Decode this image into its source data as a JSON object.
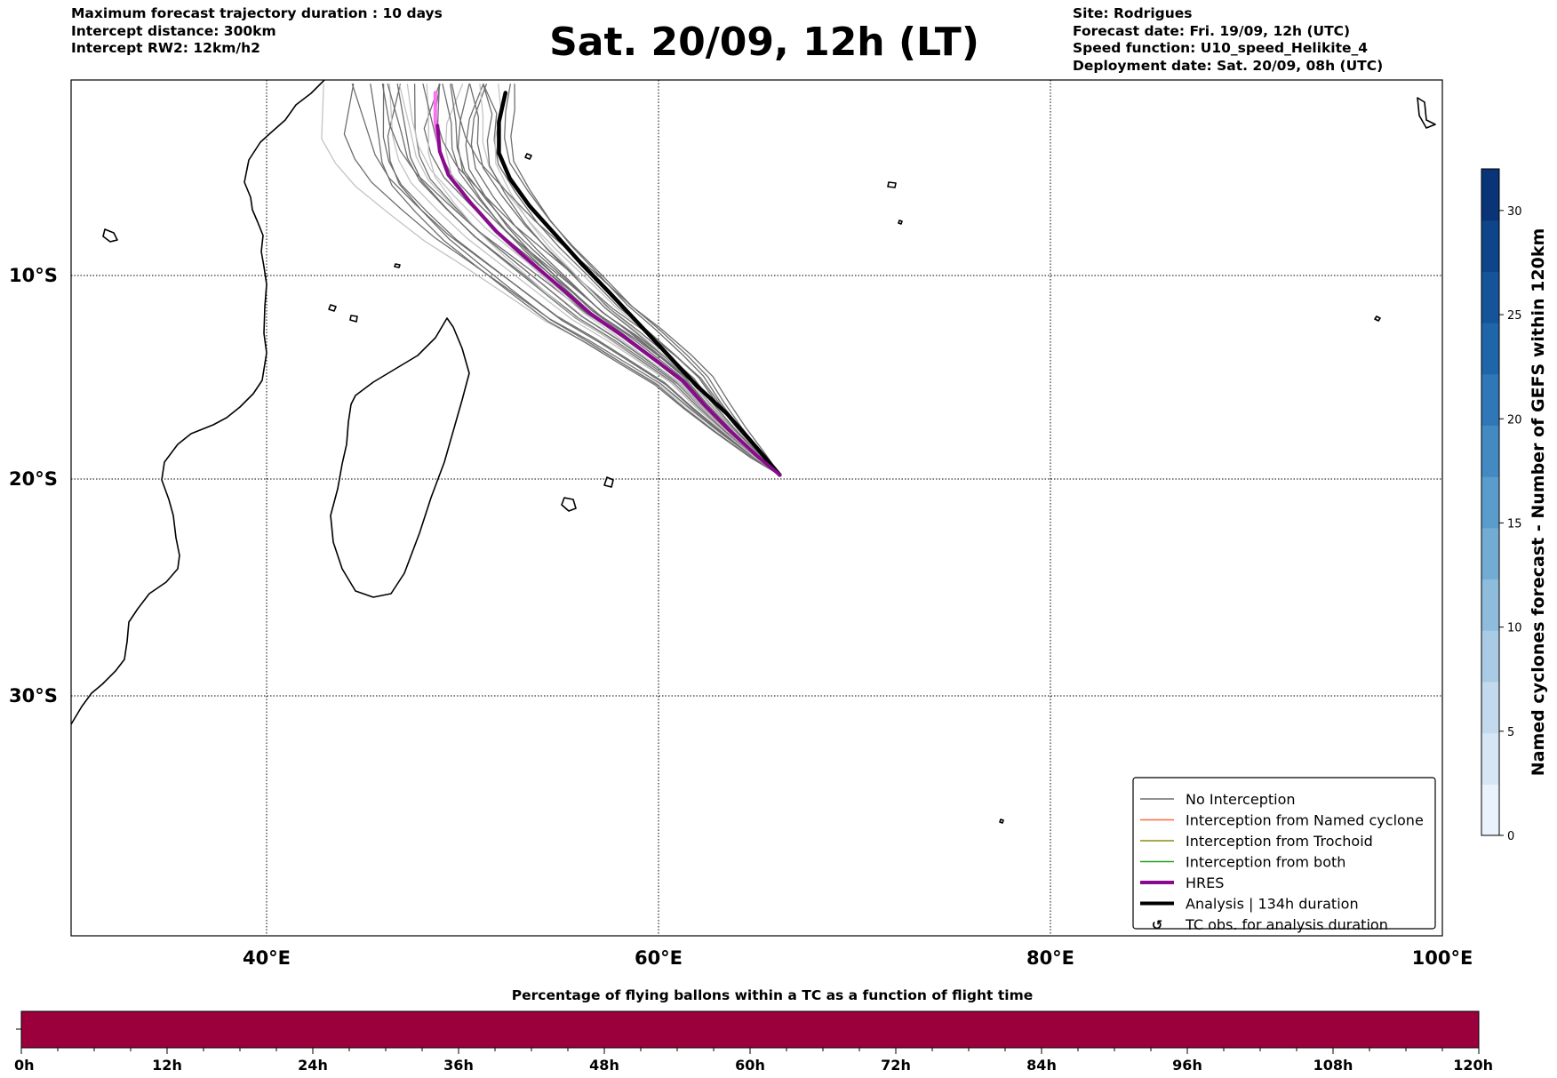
{
  "header": {
    "left_lines": [
      "Maximum forecast trajectory duration : 10 days",
      "Intercept distance: 300km",
      "Intercept RW2: 12km/h2"
    ],
    "title": "Sat. 20/09, 12h (LT)",
    "right_lines": [
      "Site: Rodrigues",
      "Forecast date: Fri. 19/09, 12h (UTC)",
      "Speed function: U10_speed_Helikite_4",
      "Deployment date: Sat. 20/09, 08h (UTC)"
    ]
  },
  "map": {
    "lat_labels": [
      "10°S",
      "20°S",
      "30°S"
    ],
    "lon_labels": [
      "40°E",
      "60°E",
      "80°E",
      "100°E"
    ],
    "deployment_site": "Rodrigues",
    "trajectories": {
      "hres": [
        [
          63.4,
          -19.8
        ],
        [
          62.4,
          -18.9
        ],
        [
          61.1,
          -17.6
        ],
        [
          60.0,
          -16.4
        ],
        [
          59.0,
          -15.2
        ],
        [
          57.8,
          -14.2
        ],
        [
          56.3,
          -13.0
        ],
        [
          54.8,
          -11.9
        ],
        [
          53.2,
          -10.4
        ],
        [
          51.7,
          -8.9
        ],
        [
          50.5,
          -7.6
        ],
        [
          49.3,
          -6.0
        ],
        [
          48.3,
          -4.5
        ],
        [
          47.9,
          -3.2
        ],
        [
          47.8,
          -1.8
        ]
      ],
      "analysis": [
        [
          63.4,
          -19.8
        ],
        [
          62.3,
          -18.4
        ],
        [
          61.0,
          -16.8
        ],
        [
          59.6,
          -15.4
        ],
        [
          58.3,
          -13.9
        ],
        [
          57.0,
          -12.4
        ],
        [
          55.6,
          -10.8
        ],
        [
          54.4,
          -9.4
        ],
        [
          53.2,
          -7.8
        ],
        [
          52.0,
          -6.2
        ],
        [
          51.1,
          -4.7
        ],
        [
          50.6,
          -3.3
        ],
        [
          50.6,
          -1.6
        ],
        [
          50.9,
          0.0
        ]
      ],
      "pink_segment": [
        [
          48.3,
          -4.5
        ],
        [
          47.9,
          -3.2
        ],
        [
          47.7,
          -1.6
        ],
        [
          47.7,
          0.0
        ]
      ]
    },
    "colors": {
      "ensemble": "#6f6f6f",
      "ensemble_light": "#c4c4c4",
      "hres": "#8a0a8e",
      "analysis": "#000000",
      "pink": "#ff6ef5"
    }
  },
  "legend": {
    "items": [
      {
        "label": "No Interception",
        "color": "#6f6f6f",
        "type": "line-thin"
      },
      {
        "label": "Interception from Named cyclone",
        "color": "#ff6a3d",
        "type": "line-thin"
      },
      {
        "label": "Interception from Trochoid",
        "color": "#8a8a10",
        "type": "line-thin"
      },
      {
        "label": "Interception from both",
        "color": "#22a022",
        "type": "line-thin"
      },
      {
        "label": "HRES",
        "color": "#8a0a8e",
        "type": "line-thick"
      },
      {
        "label": "Analysis | 134h duration",
        "color": "#000000",
        "type": "line-thick"
      },
      {
        "label": "TC obs. for analysis duration",
        "color": "#000000",
        "type": "symbol",
        "symbol": "↺"
      }
    ]
  },
  "colorbar": {
    "label": "Named cyclones forecast - Number of GEFS within 120km",
    "ticks": [
      "0",
      "5",
      "10",
      "15",
      "20",
      "25",
      "30"
    ],
    "range": [
      0,
      32
    ],
    "colors": [
      "#eaf2fb",
      "#d6e6f5",
      "#c2d9ee",
      "#a9cbe5",
      "#8dbcdc",
      "#72acd3",
      "#5a9ccb",
      "#4389c2",
      "#3077b8",
      "#1f65aa",
      "#16549a",
      "#0e4489",
      "#0a3478"
    ]
  },
  "timebar": {
    "title": "Percentage of flying ballons within a TC as a function of flight time",
    "ticks": [
      "0h",
      "12h",
      "24h",
      "36h",
      "48h",
      "60h",
      "72h",
      "84h",
      "96h",
      "108h",
      "120h"
    ],
    "fill_color": "#9b003c",
    "percent_in_tc": 0
  }
}
